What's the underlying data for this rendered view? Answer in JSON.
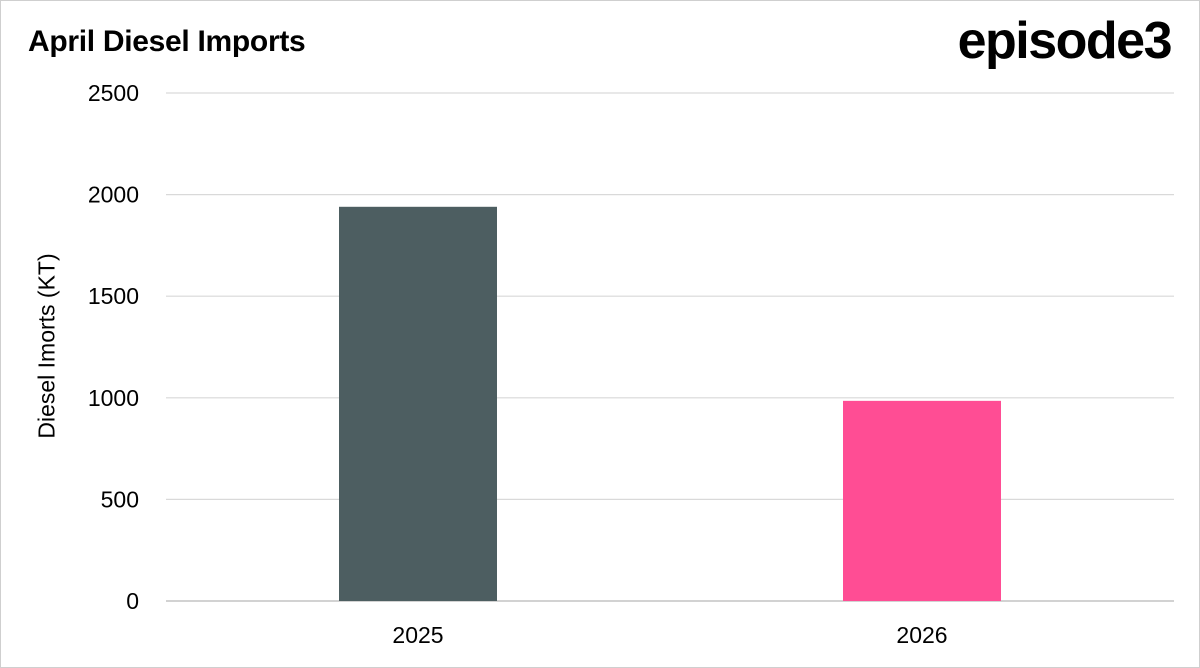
{
  "logo_text": "episode3",
  "chart_data": {
    "type": "bar",
    "title": "April Diesel Imports",
    "xlabel": "",
    "ylabel": "Diesel Imorts (KT)",
    "categories": [
      "2025",
      "2026"
    ],
    "values": [
      1940,
      985
    ],
    "colors": [
      "#4d5e61",
      "#ff4d94"
    ],
    "ylim": [
      0,
      2500
    ],
    "yticks": [
      "0",
      "500",
      "1000",
      "1500",
      "2000",
      "2500"
    ],
    "grid": true,
    "legend": "none"
  }
}
